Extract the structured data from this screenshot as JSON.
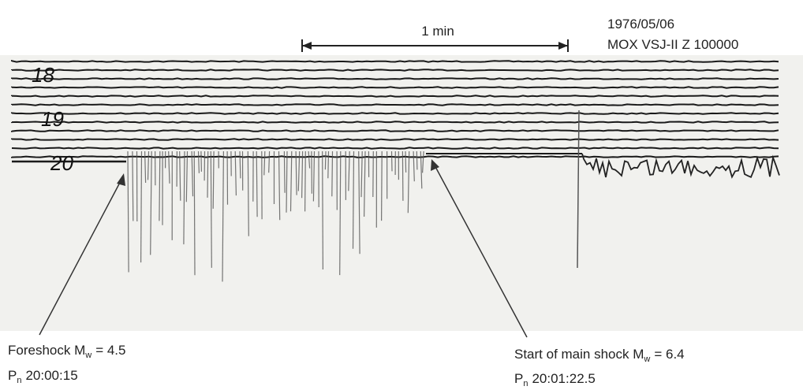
{
  "scale_bar": {
    "label": "1 min"
  },
  "header": {
    "date": "1976/05/06",
    "station": "MOX VSJ-II Z 100000"
  },
  "hour_labels": [
    "18",
    "19",
    "20"
  ],
  "annotations": [
    {
      "text": "Foreshock M",
      "sub": "w",
      "rest": "= 4.5",
      "phase": "P",
      "phase_sub": "n",
      "time": "20:00:15"
    },
    {
      "text": "Start of main shock M",
      "sub": "w",
      "rest": "= 6.4",
      "phase": "P",
      "phase_sub": "n",
      "time": "20:01:22.5"
    }
  ]
}
